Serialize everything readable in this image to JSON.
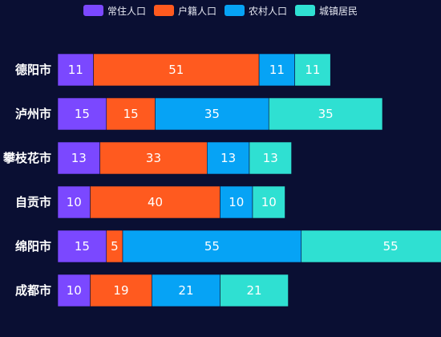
{
  "chart_data": {
    "type": "bar",
    "orientation": "horizontal",
    "stacked": true,
    "categories": [
      "德阳市",
      "泸州市",
      "攀枝花市",
      "自贡市",
      "绵阳市",
      "成都市"
    ],
    "series": [
      {
        "name": "常住人口",
        "color": "#7b48ff",
        "values": [
          11,
          15,
          13,
          10,
          15,
          10
        ]
      },
      {
        "name": "户籍人口",
        "color": "#ff5a1f",
        "values": [
          51,
          15,
          33,
          40,
          5,
          19
        ]
      },
      {
        "name": "农村人口",
        "color": "#06a3f5",
        "values": [
          11,
          35,
          13,
          10,
          55,
          21
        ]
      },
      {
        "name": "城镇居民",
        "color": "#2fe0d2",
        "values": [
          11,
          35,
          13,
          10,
          55,
          21
        ]
      }
    ],
    "title": "",
    "xlabel": "",
    "ylabel": "",
    "legend_position": "top-center",
    "grid": false
  }
}
